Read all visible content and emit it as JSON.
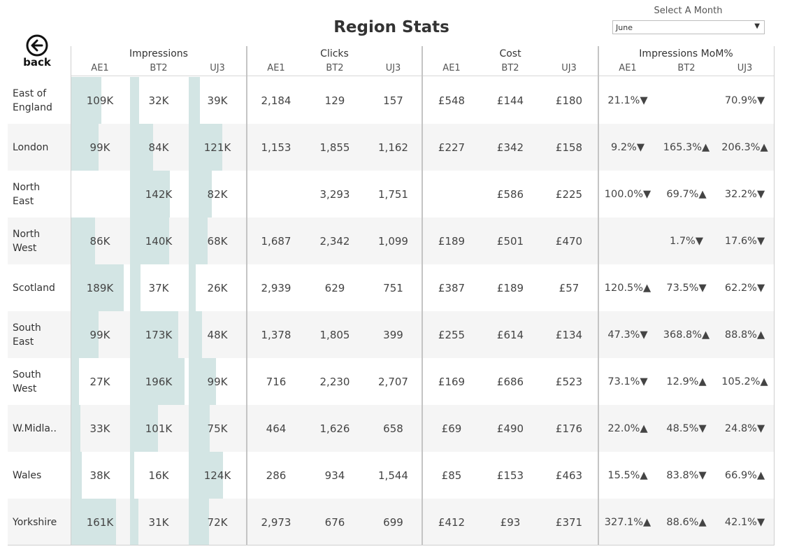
{
  "title": "Region Stats",
  "month_filter": {
    "label": "Select A Month",
    "value": "June"
  },
  "back_label": "back",
  "groups": [
    "Impressions",
    "Clicks",
    "Cost",
    "Impressions MoM%"
  ],
  "columns": [
    "AE1",
    "BT2",
    "UJ3",
    "AE1",
    "BT2",
    "UJ3",
    "AE1",
    "BT2",
    "UJ3",
    "AE1",
    "BT2",
    "UJ3"
  ],
  "colors": {
    "bar": "#d3e5e4",
    "alt_row": "#f5f5f5",
    "text": "#333333"
  },
  "impressions_bar_max": 196,
  "rows": [
    {
      "region": "East of\nEngland",
      "imp": [
        "109K",
        "32K",
        "39K"
      ],
      "imp_k": [
        109,
        32,
        39
      ],
      "clicks": [
        "2,184",
        "129",
        "157"
      ],
      "cost": [
        "£548",
        "£144",
        "£180"
      ],
      "mom": [
        "21.1%▼",
        "",
        "70.9%▼"
      ]
    },
    {
      "region": "London",
      "imp": [
        "99K",
        "84K",
        "121K"
      ],
      "imp_k": [
        99,
        84,
        121
      ],
      "clicks": [
        "1,153",
        "1,855",
        "1,162"
      ],
      "cost": [
        "£227",
        "£342",
        "£158"
      ],
      "mom": [
        "9.2%▼",
        "165.3%▲",
        "206.3%▲"
      ]
    },
    {
      "region": "North\nEast",
      "imp": [
        "",
        "142K",
        "82K"
      ],
      "imp_k": [
        0,
        142,
        82
      ],
      "clicks": [
        "",
        "3,293",
        "1,751"
      ],
      "cost": [
        "",
        "£586",
        "£225"
      ],
      "mom": [
        "100.0%▼",
        "69.7%▲",
        "32.2%▼"
      ]
    },
    {
      "region": "North\nWest",
      "imp": [
        "86K",
        "140K",
        "68K"
      ],
      "imp_k": [
        86,
        140,
        68
      ],
      "clicks": [
        "1,687",
        "2,342",
        "1,099"
      ],
      "cost": [
        "£189",
        "£501",
        "£470"
      ],
      "mom": [
        "",
        "1.7%▼",
        "17.6%▼"
      ]
    },
    {
      "region": "Scotland",
      "imp": [
        "189K",
        "37K",
        "26K"
      ],
      "imp_k": [
        189,
        37,
        26
      ],
      "clicks": [
        "2,939",
        "629",
        "751"
      ],
      "cost": [
        "£387",
        "£189",
        "£57"
      ],
      "mom": [
        "120.5%▲",
        "73.5%▼",
        "62.2%▼"
      ]
    },
    {
      "region": "South\nEast",
      "imp": [
        "99K",
        "173K",
        "48K"
      ],
      "imp_k": [
        99,
        173,
        48
      ],
      "clicks": [
        "1,378",
        "1,805",
        "399"
      ],
      "cost": [
        "£255",
        "£614",
        "£134"
      ],
      "mom": [
        "47.3%▼",
        "368.8%▲",
        "88.8%▲"
      ]
    },
    {
      "region": "South\nWest",
      "imp": [
        "27K",
        "196K",
        "99K"
      ],
      "imp_k": [
        27,
        196,
        99
      ],
      "clicks": [
        "716",
        "2,230",
        "2,707"
      ],
      "cost": [
        "£169",
        "£686",
        "£523"
      ],
      "mom": [
        "73.1%▼",
        "12.9%▲",
        "105.2%▲"
      ]
    },
    {
      "region": "W.Midla..",
      "imp": [
        "33K",
        "101K",
        "75K"
      ],
      "imp_k": [
        33,
        101,
        75
      ],
      "clicks": [
        "464",
        "1,626",
        "658"
      ],
      "cost": [
        "£69",
        "£490",
        "£176"
      ],
      "mom": [
        "22.0%▲",
        "48.5%▼",
        "24.8%▼"
      ]
    },
    {
      "region": "Wales",
      "imp": [
        "38K",
        "16K",
        "124K"
      ],
      "imp_k": [
        38,
        16,
        124
      ],
      "clicks": [
        "286",
        "934",
        "1,544"
      ],
      "cost": [
        "£85",
        "£153",
        "£463"
      ],
      "mom": [
        "15.5%▲",
        "83.8%▼",
        "66.9%▲"
      ]
    },
    {
      "region": "Yorkshire",
      "imp": [
        "161K",
        "31K",
        "72K"
      ],
      "imp_k": [
        161,
        31,
        72
      ],
      "clicks": [
        "2,973",
        "676",
        "699"
      ],
      "cost": [
        "£412",
        "£93",
        "£371"
      ],
      "mom": [
        "327.1%▲",
        "88.6%▲",
        "42.1%▼"
      ]
    }
  ]
}
